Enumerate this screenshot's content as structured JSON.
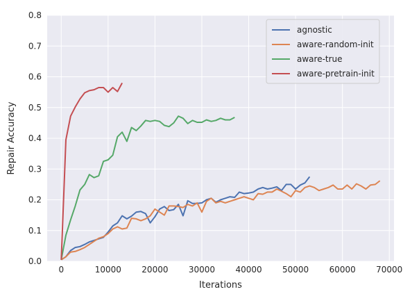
{
  "chart_data": {
    "type": "line",
    "title": "",
    "xlabel": "Iterations",
    "ylabel": "Repair Accuracy",
    "xlim": [
      -3000,
      71000
    ],
    "ylim": [
      0,
      0.8
    ],
    "xticks": [
      0,
      10000,
      20000,
      30000,
      40000,
      50000,
      60000,
      70000
    ],
    "yticks": [
      0.0,
      0.1,
      0.2,
      0.3,
      0.4,
      0.5,
      0.6,
      0.7,
      0.8
    ],
    "xtick_labels": [
      "0",
      "10000",
      "20000",
      "30000",
      "40000",
      "50000",
      "60000",
      "70000"
    ],
    "ytick_labels": [
      "0.0",
      "0.1",
      "0.2",
      "0.3",
      "0.4",
      "0.5",
      "0.6",
      "0.7",
      "0.8"
    ],
    "grid": true,
    "legend_position": "top-right",
    "background_color": "#eaeaf2",
    "grid_color": "#ffffff",
    "series": [
      {
        "name": "agnostic",
        "color": "#4c72b0",
        "x": [
          0,
          1000,
          2000,
          3000,
          4000,
          5000,
          6000,
          7000,
          8000,
          9000,
          10000,
          11000,
          12000,
          13000,
          14000,
          15000,
          16000,
          17000,
          18000,
          19000,
          20000,
          21000,
          22000,
          23000,
          24000,
          25000,
          26000,
          27000,
          28000,
          29000,
          30000,
          31000,
          32000,
          33000,
          34000,
          35000,
          36000,
          37000,
          38000,
          39000,
          40000,
          41000,
          42000,
          43000,
          44000,
          45000,
          46000,
          47000,
          48000,
          49000,
          50000,
          51000,
          52000,
          53000
        ],
        "y": [
          0.005,
          0.015,
          0.035,
          0.045,
          0.048,
          0.055,
          0.063,
          0.068,
          0.073,
          0.078,
          0.095,
          0.115,
          0.125,
          0.148,
          0.138,
          0.147,
          0.16,
          0.162,
          0.155,
          0.125,
          0.145,
          0.17,
          0.178,
          0.165,
          0.168,
          0.185,
          0.148,
          0.197,
          0.188,
          0.188,
          0.19,
          0.2,
          0.205,
          0.192,
          0.2,
          0.205,
          0.21,
          0.208,
          0.225,
          0.22,
          0.222,
          0.225,
          0.235,
          0.24,
          0.235,
          0.238,
          0.242,
          0.23,
          0.25,
          0.25,
          0.235,
          0.248,
          0.255,
          0.275
        ]
      },
      {
        "name": "aware-random-init",
        "color": "#dd8452",
        "x": [
          0,
          1000,
          2000,
          3000,
          4000,
          5000,
          6000,
          7000,
          8000,
          9000,
          10000,
          11000,
          12000,
          13000,
          14000,
          15000,
          16000,
          17000,
          18000,
          19000,
          20000,
          21000,
          22000,
          23000,
          24000,
          25000,
          26000,
          27000,
          28000,
          29000,
          30000,
          31000,
          32000,
          33000,
          34000,
          35000,
          36000,
          37000,
          38000,
          39000,
          40000,
          41000,
          42000,
          43000,
          44000,
          45000,
          46000,
          47000,
          48000,
          49000,
          50000,
          51000,
          52000,
          53000,
          54000,
          55000,
          56000,
          57000,
          58000,
          59000,
          60000,
          61000,
          62000,
          63000,
          64000,
          65000,
          66000,
          67000,
          68000
        ],
        "y": [
          0.005,
          0.015,
          0.03,
          0.032,
          0.038,
          0.045,
          0.055,
          0.065,
          0.075,
          0.08,
          0.09,
          0.105,
          0.112,
          0.105,
          0.108,
          0.14,
          0.138,
          0.132,
          0.138,
          0.148,
          0.17,
          0.16,
          0.15,
          0.18,
          0.18,
          0.178,
          0.175,
          0.185,
          0.18,
          0.19,
          0.16,
          0.195,
          0.205,
          0.19,
          0.195,
          0.19,
          0.195,
          0.2,
          0.205,
          0.21,
          0.205,
          0.2,
          0.22,
          0.218,
          0.225,
          0.225,
          0.235,
          0.228,
          0.22,
          0.21,
          0.23,
          0.225,
          0.24,
          0.245,
          0.24,
          0.23,
          0.235,
          0.24,
          0.248,
          0.235,
          0.235,
          0.248,
          0.235,
          0.252,
          0.245,
          0.235,
          0.248,
          0.25,
          0.262
        ]
      },
      {
        "name": "aware-true",
        "color": "#55a868",
        "x": [
          0,
          1000,
          2000,
          3000,
          4000,
          5000,
          6000,
          7000,
          8000,
          9000,
          10000,
          11000,
          12000,
          13000,
          14000,
          15000,
          16000,
          17000,
          18000,
          19000,
          20000,
          21000,
          22000,
          23000,
          24000,
          25000,
          26000,
          27000,
          28000,
          29000,
          30000,
          31000,
          32000,
          33000,
          34000,
          35000,
          36000,
          37000
        ],
        "y": [
          0.005,
          0.085,
          0.135,
          0.18,
          0.232,
          0.25,
          0.282,
          0.272,
          0.278,
          0.325,
          0.33,
          0.345,
          0.405,
          0.42,
          0.39,
          0.435,
          0.425,
          0.44,
          0.458,
          0.455,
          0.458,
          0.455,
          0.442,
          0.438,
          0.45,
          0.472,
          0.465,
          0.448,
          0.458,
          0.452,
          0.452,
          0.46,
          0.455,
          0.458,
          0.465,
          0.46,
          0.46,
          0.468
        ]
      },
      {
        "name": "aware-pretrain-init",
        "color": "#c44e52",
        "x": [
          0,
          1000,
          2000,
          3000,
          4000,
          5000,
          6000,
          7000,
          8000,
          9000,
          10000,
          11000,
          12000,
          13000
        ],
        "y": [
          0.005,
          0.395,
          0.472,
          0.502,
          0.528,
          0.548,
          0.555,
          0.558,
          0.565,
          0.565,
          0.55,
          0.565,
          0.552,
          0.58
        ]
      }
    ]
  }
}
